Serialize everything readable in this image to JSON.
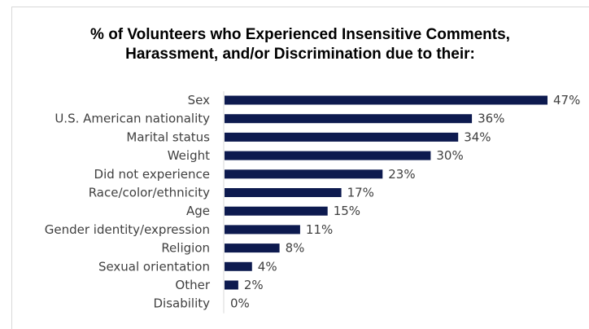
{
  "chart_data": {
    "type": "bar",
    "orientation": "horizontal",
    "title": "% of Volunteers who Experienced Insensitive Comments, Harassment, and/or Discrimination due to their:",
    "title_lines": [
      "% of Volunteers who Experienced Insensitive Comments,",
      "Harassment, and/or Discrimination due to their:"
    ],
    "categories": [
      "Sex",
      "U.S. American nationality",
      "Marital status",
      "Weight",
      "Did not experience",
      "Race/color/ethnicity",
      "Age",
      "Gender identity/expression",
      "Religion",
      "Sexual orientation",
      "Other",
      "Disability"
    ],
    "values": [
      47,
      36,
      34,
      30,
      23,
      17,
      15,
      11,
      8,
      4,
      2,
      0
    ],
    "value_labels": [
      "47%",
      "36%",
      "34%",
      "30%",
      "23%",
      "17%",
      "15%",
      "11%",
      "8%",
      "4%",
      "2%",
      "0%"
    ],
    "unit": "%",
    "xlim": [
      0,
      47
    ],
    "grid": false,
    "legend": "none",
    "bar_color": "#0d1a4f"
  }
}
